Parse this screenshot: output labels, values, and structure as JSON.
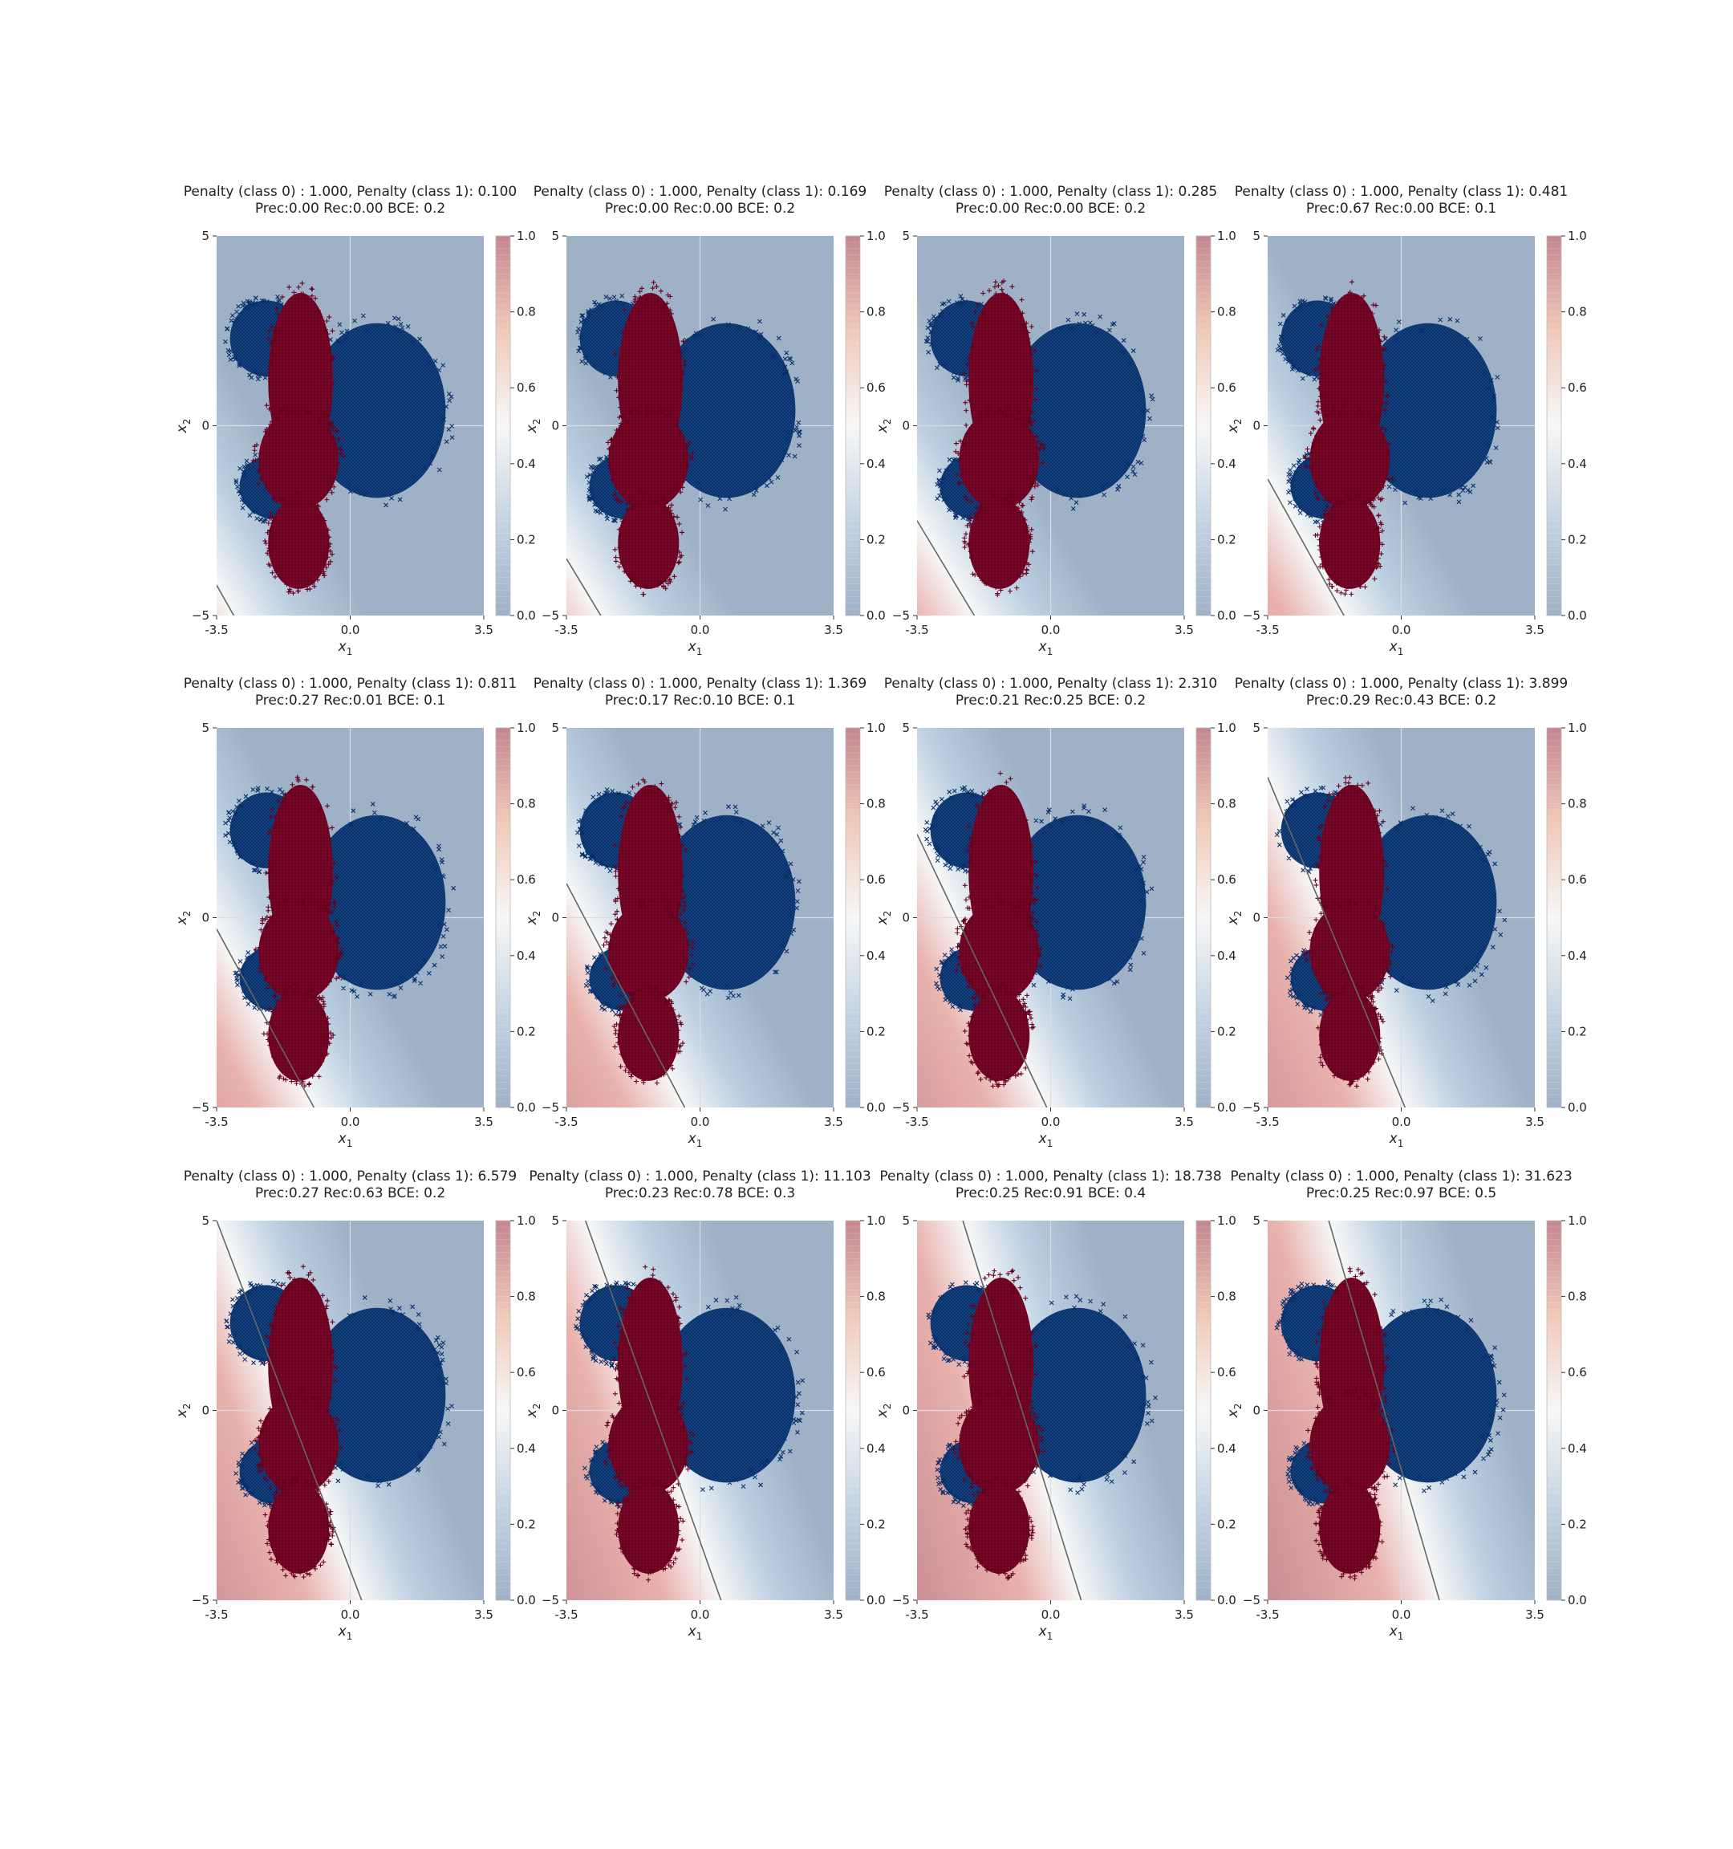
{
  "chart_data": {
    "type": "scatter",
    "layout": {
      "rows": 3,
      "cols": 4
    },
    "xlabel": "x",
    "xlabel_sub": "1",
    "ylabel": "x",
    "ylabel_sub": "2",
    "xlim": [
      -3.5,
      3.5
    ],
    "ylim": [
      -5,
      5
    ],
    "xticks": [
      "-3.5",
      "0.0",
      "3.5"
    ],
    "yticks": [
      "5",
      "0",
      "−5"
    ],
    "xticks_values": [
      -3.5,
      0.0,
      3.5
    ],
    "yticks_values": [
      5,
      0,
      -5
    ],
    "colorbar": {
      "ticks": [
        "0.0",
        "0.2",
        "0.4",
        "0.6",
        "0.8",
        "1.0"
      ],
      "range": [
        0,
        1
      ],
      "cmap": "RdBu_r"
    },
    "grid": true,
    "series_markers": {
      "class_0": "x",
      "class_1": "+"
    },
    "colors": {
      "class_0": "#08306b",
      "class_1": "#67001f",
      "low": "#9eb1c6",
      "high": "#c4868f",
      "mid": "#f7f7f7",
      "boundary": "#666666"
    },
    "clusters_class_0": [
      {
        "cx": -2.2,
        "cy": 2.3,
        "rx": 0.95,
        "ry": 1.0
      },
      {
        "cx": -2.0,
        "cy": -1.6,
        "rx": 0.9,
        "ry": 0.85
      },
      {
        "cx": 0.7,
        "cy": 0.4,
        "rx": 1.8,
        "ry": 2.3
      }
    ],
    "clusters_class_1": [
      {
        "cx": -1.3,
        "cy": 1.2,
        "rx": 0.85,
        "ry": 2.3
      },
      {
        "cx": -1.35,
        "cy": -0.9,
        "rx": 1.05,
        "ry": 1.3
      },
      {
        "cx": -1.35,
        "cy": -3.1,
        "rx": 0.8,
        "ry": 1.2
      }
    ],
    "subplots": [
      {
        "title": "Penalty (class 0) : 1.000, Penalty (class 1): 0.100",
        "subtitle": "Prec:0.00  Rec:0.00  BCE: 0.2",
        "penalty_class0": 1.0,
        "penalty_class1": 0.1,
        "precision": 0.0,
        "recall": 0.0,
        "bce": 0.2,
        "boundary": [
          [
            -3.5,
            -4.2
          ],
          [
            -3.05,
            -5.0
          ]
        ]
      },
      {
        "title": "Penalty (class 0) : 1.000, Penalty (class 1): 0.169",
        "subtitle": "Prec:0.00  Rec:0.00  BCE: 0.2",
        "penalty_class0": 1.0,
        "penalty_class1": 0.169,
        "precision": 0.0,
        "recall": 0.0,
        "bce": 0.2,
        "boundary": [
          [
            -3.5,
            -3.5
          ],
          [
            -2.6,
            -5.0
          ]
        ]
      },
      {
        "title": "Penalty (class 0) : 1.000, Penalty (class 1): 0.285",
        "subtitle": "Prec:0.00  Rec:0.00  BCE: 0.2",
        "penalty_class0": 1.0,
        "penalty_class1": 0.285,
        "precision": 0.0,
        "recall": 0.0,
        "bce": 0.2,
        "boundary": [
          [
            -3.5,
            -2.5
          ],
          [
            -2.0,
            -5.0
          ]
        ]
      },
      {
        "title": "Penalty (class 0) : 1.000, Penalty (class 1): 0.481",
        "subtitle": "Prec:0.67  Rec:0.00  BCE: 0.1",
        "penalty_class0": 1.0,
        "penalty_class1": 0.481,
        "precision": 0.67,
        "recall": 0.0,
        "bce": 0.1,
        "boundary": [
          [
            -3.5,
            -1.4
          ],
          [
            -1.5,
            -5.0
          ]
        ]
      },
      {
        "title": "Penalty (class 0) : 1.000, Penalty (class 1): 0.811",
        "subtitle": "Prec:0.27  Rec:0.01  BCE: 0.1",
        "penalty_class0": 1.0,
        "penalty_class1": 0.811,
        "precision": 0.27,
        "recall": 0.01,
        "bce": 0.1,
        "boundary": [
          [
            -3.5,
            -0.3
          ],
          [
            -0.95,
            -5.0
          ]
        ]
      },
      {
        "title": "Penalty (class 0) : 1.000, Penalty (class 1): 1.369",
        "subtitle": "Prec:0.17  Rec:0.10  BCE: 0.1",
        "penalty_class0": 1.0,
        "penalty_class1": 1.369,
        "precision": 0.17,
        "recall": 0.1,
        "bce": 0.1,
        "boundary": [
          [
            -3.5,
            0.9
          ],
          [
            -0.4,
            -5.0
          ]
        ]
      },
      {
        "title": "Penalty (class 0) : 1.000, Penalty (class 1): 2.310",
        "subtitle": "Prec:0.21  Rec:0.25  BCE: 0.2",
        "penalty_class0": 1.0,
        "penalty_class1": 2.31,
        "precision": 0.21,
        "recall": 0.25,
        "bce": 0.2,
        "boundary": [
          [
            -3.5,
            2.2
          ],
          [
            -0.1,
            -5.0
          ]
        ]
      },
      {
        "title": "Penalty (class 0) : 1.000, Penalty (class 1): 3.899",
        "subtitle": "Prec:0.29  Rec:0.43  BCE: 0.2",
        "penalty_class0": 1.0,
        "penalty_class1": 3.899,
        "precision": 0.29,
        "recall": 0.43,
        "bce": 0.2,
        "boundary": [
          [
            -3.5,
            3.7
          ],
          [
            0.1,
            -5.0
          ]
        ]
      },
      {
        "title": "Penalty (class 0) : 1.000, Penalty (class 1): 6.579",
        "subtitle": "Prec:0.27  Rec:0.63  BCE: 0.2",
        "penalty_class0": 1.0,
        "penalty_class1": 6.579,
        "precision": 0.27,
        "recall": 0.63,
        "bce": 0.2,
        "boundary": [
          [
            -3.5,
            5.0
          ],
          [
            0.3,
            -5.0
          ]
        ]
      },
      {
        "title": "Penalty (class 0) : 1.000, Penalty (class 1): 11.103",
        "subtitle": "Prec:0.23  Rec:0.78  BCE: 0.3",
        "penalty_class0": 1.0,
        "penalty_class1": 11.103,
        "precision": 0.23,
        "recall": 0.78,
        "bce": 0.3,
        "boundary": [
          [
            -3.0,
            5.0
          ],
          [
            0.55,
            -5.0
          ]
        ]
      },
      {
        "title": "Penalty (class 0) : 1.000, Penalty (class 1): 18.738",
        "subtitle": "Prec:0.25  Rec:0.91  BCE: 0.4",
        "penalty_class0": 1.0,
        "penalty_class1": 18.738,
        "precision": 0.25,
        "recall": 0.91,
        "bce": 0.4,
        "boundary": [
          [
            -2.3,
            5.0
          ],
          [
            0.8,
            -5.0
          ]
        ]
      },
      {
        "title": "Penalty (class 0) : 1.000, Penalty (class 1): 31.623",
        "subtitle": "Prec:0.25  Rec:0.97  BCE: 0.5",
        "penalty_class0": 1.0,
        "penalty_class1": 31.623,
        "precision": 0.25,
        "recall": 0.97,
        "bce": 0.5,
        "boundary": [
          [
            -1.9,
            5.0
          ],
          [
            1.0,
            -5.0
          ]
        ]
      }
    ]
  }
}
